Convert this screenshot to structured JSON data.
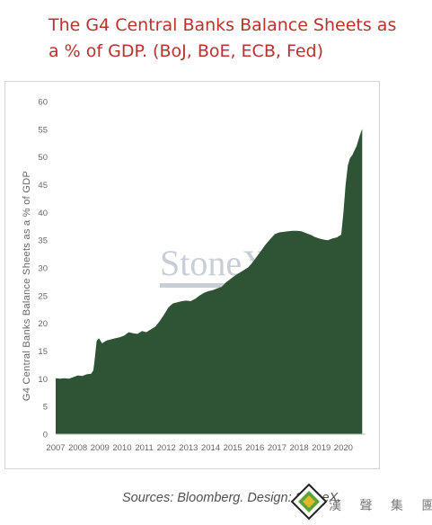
{
  "page": {
    "title": "The G4 Central Banks Balance Sheets as a % of GDP. (BoJ, BoE, ECB, Fed)",
    "sources": "Sources: Bloomberg. Design: StoneX.",
    "watermark": "StoneX",
    "logo_text": "漢 聲 集 團"
  },
  "colors": {
    "title": "#b8322e",
    "area_fill": "#2e5435",
    "axis_text": "#666666"
  },
  "chart_data": {
    "type": "area",
    "title": "",
    "xlabel": "",
    "ylabel": "G4 Central Banks Balance Sheets as a % of GDP",
    "ylim": [
      0,
      60
    ],
    "xlim": [
      2007,
      2021.0
    ],
    "yticks": [
      0,
      5,
      10,
      15,
      20,
      25,
      30,
      35,
      40,
      45,
      50,
      55,
      60
    ],
    "xticks": [
      "2007",
      "2008",
      "2009",
      "2010",
      "2011",
      "2012",
      "2013",
      "2014",
      "2015",
      "2016",
      "2017",
      "2018",
      "2019",
      "2020"
    ],
    "grid": false,
    "legend": "none",
    "series": [
      {
        "x": [
          2007.0,
          2007.2,
          2007.4,
          2007.6,
          2007.8,
          2008.0,
          2008.2,
          2008.4,
          2008.6,
          2008.7,
          2008.75,
          2008.85,
          2008.95,
          2009.1,
          2009.3,
          2009.5,
          2009.7,
          2009.9,
          2010.1,
          2010.3,
          2010.5,
          2010.7,
          2010.9,
          2011.1,
          2011.3,
          2011.5,
          2011.7,
          2011.9,
          2012.1,
          2012.3,
          2012.5,
          2012.7,
          2012.9,
          2013.1,
          2013.3,
          2013.5,
          2013.7,
          2013.9,
          2014.1,
          2014.3,
          2014.5,
          2014.7,
          2014.9,
          2015.1,
          2015.3,
          2015.5,
          2015.7,
          2015.9,
          2016.1,
          2016.3,
          2016.5,
          2016.7,
          2016.9,
          2017.1,
          2017.3,
          2017.5,
          2017.7,
          2017.9,
          2018.1,
          2018.3,
          2018.5,
          2018.7,
          2018.9,
          2019.1,
          2019.3,
          2019.5,
          2019.7,
          2019.9,
          2020.0,
          2020.1,
          2020.2,
          2020.3,
          2020.4,
          2020.6,
          2020.75,
          2020.85
        ],
        "values": [
          10.1,
          10.0,
          10.1,
          10.0,
          10.3,
          10.6,
          10.5,
          10.8,
          10.9,
          11.5,
          13.0,
          16.8,
          17.3,
          16.4,
          16.9,
          17.1,
          17.3,
          17.5,
          17.8,
          18.4,
          18.2,
          18.1,
          18.6,
          18.4,
          18.9,
          19.4,
          20.4,
          21.6,
          22.9,
          23.6,
          23.8,
          24.0,
          24.1,
          24.0,
          24.4,
          25.0,
          25.5,
          25.8,
          26.0,
          26.3,
          26.6,
          27.4,
          28.0,
          28.6,
          29.1,
          29.6,
          30.1,
          31.0,
          32.1,
          33.2,
          34.3,
          35.2,
          36.1,
          36.4,
          36.5,
          36.6,
          36.7,
          36.7,
          36.6,
          36.3,
          36.0,
          35.6,
          35.3,
          35.1,
          35.0,
          35.3,
          35.5,
          36.0,
          40.0,
          45.0,
          48.5,
          49.8,
          50.3,
          52.0,
          54.0,
          55.1
        ]
      }
    ]
  }
}
